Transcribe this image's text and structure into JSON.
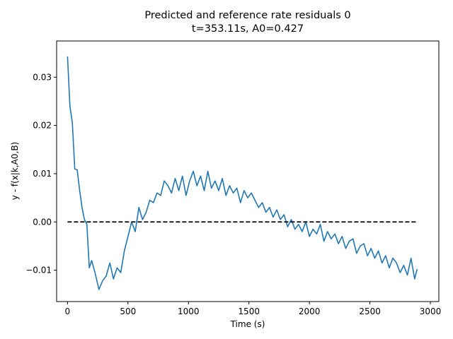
{
  "chart_data": {
    "type": "line",
    "title": "Predicted and reference rate residuals 0",
    "subtitle": "t=353.11s, A0=0.427",
    "xlabel": "Time (s)",
    "ylabel": "y - f(x|k,A0,B)",
    "xlim": [
      -90,
      3070
    ],
    "ylim": [
      -0.0165,
      0.0375
    ],
    "xticks": [
      0,
      500,
      1000,
      1500,
      2000,
      2500,
      3000
    ],
    "xtick_labels": [
      "0",
      "500",
      "1000",
      "1500",
      "2000",
      "2500",
      "3000"
    ],
    "yticks": [
      -0.01,
      0.0,
      0.01,
      0.02,
      0.03
    ],
    "ytick_labels": [
      "−0.01",
      "0.00",
      "0.01",
      "0.02",
      "0.03"
    ],
    "grid": false,
    "series": [
      {
        "color": "#1f77b4",
        "style": "solid",
        "x": [
          0,
          20,
          40,
          60,
          80,
          100,
          120,
          140,
          160,
          180,
          200,
          230,
          260,
          290,
          320,
          350,
          380,
          410,
          440,
          470,
          500,
          530,
          560,
          590,
          620,
          650,
          680,
          710,
          740,
          770,
          800,
          830,
          860,
          890,
          920,
          950,
          980,
          1010,
          1040,
          1070,
          1100,
          1130,
          1160,
          1190,
          1220,
          1250,
          1280,
          1310,
          1340,
          1370,
          1400,
          1430,
          1460,
          1490,
          1520,
          1550,
          1580,
          1610,
          1640,
          1670,
          1700,
          1730,
          1760,
          1790,
          1820,
          1850,
          1880,
          1910,
          1940,
          1970,
          2000,
          2030,
          2060,
          2090,
          2120,
          2150,
          2180,
          2210,
          2240,
          2270,
          2300,
          2330,
          2360,
          2390,
          2420,
          2450,
          2480,
          2510,
          2540,
          2570,
          2600,
          2630,
          2660,
          2690,
          2720,
          2750,
          2780,
          2810,
          2840,
          2870,
          2890
        ],
        "y": [
          0.0343,
          0.024,
          0.0205,
          0.011,
          0.0108,
          0.0066,
          0.003,
          0.0005,
          -0.0005,
          -0.0095,
          -0.008,
          -0.0108,
          -0.014,
          -0.0122,
          -0.0112,
          -0.0085,
          -0.0118,
          -0.0095,
          -0.0105,
          -0.006,
          -0.003,
          0.0,
          -0.002,
          0.003,
          0.0005,
          0.002,
          0.0045,
          0.004,
          0.006,
          0.0055,
          0.0085,
          0.0075,
          0.006,
          0.009,
          0.0065,
          0.0095,
          0.0055,
          0.0085,
          0.0105,
          0.0075,
          0.0095,
          0.0065,
          0.0105,
          0.007,
          0.0085,
          0.0065,
          0.009,
          0.0055,
          0.0075,
          0.006,
          0.007,
          0.004,
          0.0065,
          0.005,
          0.006,
          0.0045,
          0.003,
          0.004,
          0.002,
          0.003,
          0.001,
          0.0025,
          0.0005,
          0.0015,
          -0.001,
          0.0005,
          -0.0015,
          -0.0005,
          -0.002,
          0.0,
          -0.003,
          -0.0015,
          -0.0025,
          -0.0005,
          -0.004,
          -0.002,
          -0.0035,
          -0.0025,
          -0.0045,
          -0.003,
          -0.0055,
          -0.004,
          -0.0035,
          -0.0065,
          -0.005,
          -0.0045,
          -0.007,
          -0.0055,
          -0.0075,
          -0.006,
          -0.0085,
          -0.007,
          -0.0095,
          -0.0075,
          -0.0085,
          -0.0105,
          -0.009,
          -0.011,
          -0.0075,
          -0.0118,
          -0.0098
        ]
      },
      {
        "color": "#000000",
        "style": "dashed",
        "x": [
          0,
          2890
        ],
        "y": [
          0.0,
          0.0
        ]
      }
    ]
  }
}
